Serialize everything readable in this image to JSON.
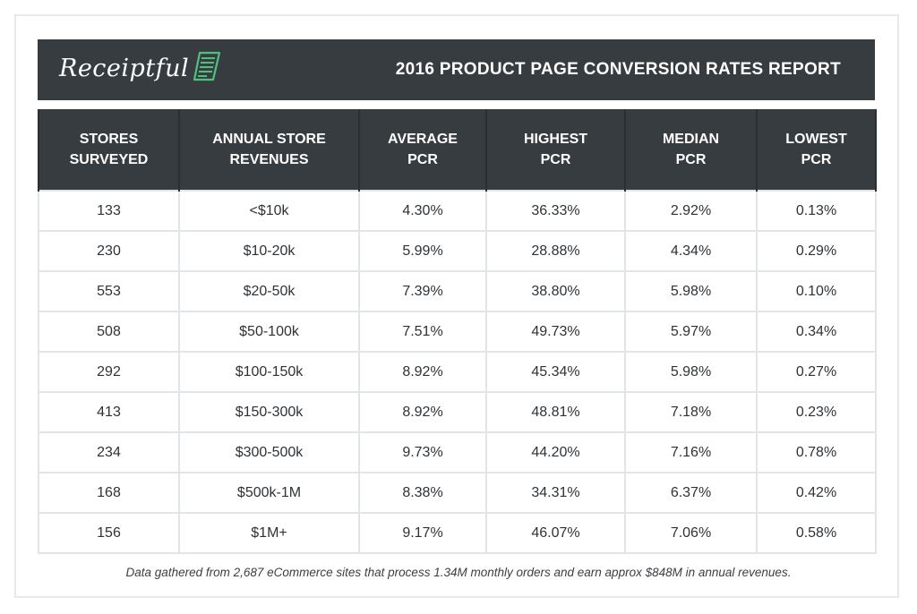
{
  "header": {
    "logo_text": "Receiptful",
    "logo_icon": "receipt-icon",
    "title": "2016 PRODUCT PAGE CONVERSION RATES REPORT"
  },
  "colors": {
    "dark": "#373c41",
    "accent_green": "#4ec27a",
    "grid": "#e2e5e7",
    "text": "#2e3236"
  },
  "chart_data": {
    "type": "table",
    "title": "2016 PRODUCT PAGE CONVERSION RATES REPORT",
    "columns": [
      {
        "line1": "STORES",
        "line2": "SURVEYED"
      },
      {
        "line1": "ANNUAL STORE",
        "line2": "REVENUES"
      },
      {
        "line1": "AVERAGE",
        "line2": "PCR"
      },
      {
        "line1": "HIGHEST",
        "line2": "PCR"
      },
      {
        "line1": "MEDIAN",
        "line2": "PCR"
      },
      {
        "line1": "LOWEST",
        "line2": "PCR"
      }
    ],
    "rows": [
      [
        "133",
        "<$10k",
        "4.30%",
        "36.33%",
        "2.92%",
        "0.13%"
      ],
      [
        "230",
        "$10-20k",
        "5.99%",
        "28.88%",
        "4.34%",
        "0.29%"
      ],
      [
        "553",
        "$20-50k",
        "7.39%",
        "38.80%",
        "5.98%",
        "0.10%"
      ],
      [
        "508",
        "$50-100k",
        "7.51%",
        "49.73%",
        "5.97%",
        "0.34%"
      ],
      [
        "292",
        "$100-150k",
        "8.92%",
        "45.34%",
        "5.98%",
        "0.27%"
      ],
      [
        "413",
        "$150-300k",
        "8.92%",
        "48.81%",
        "7.18%",
        "0.23%"
      ],
      [
        "234",
        "$300-500k",
        "9.73%",
        "44.20%",
        "7.16%",
        "0.78%"
      ],
      [
        "168",
        "$500k-1M",
        "8.38%",
        "34.31%",
        "6.37%",
        "0.42%"
      ],
      [
        "156",
        "$1M+",
        "9.17%",
        "46.07%",
        "7.06%",
        "0.58%"
      ]
    ]
  },
  "footnote": "Data gathered from 2,687 eCommerce sites that process 1.34M monthly orders and earn approx $848M in annual revenues."
}
